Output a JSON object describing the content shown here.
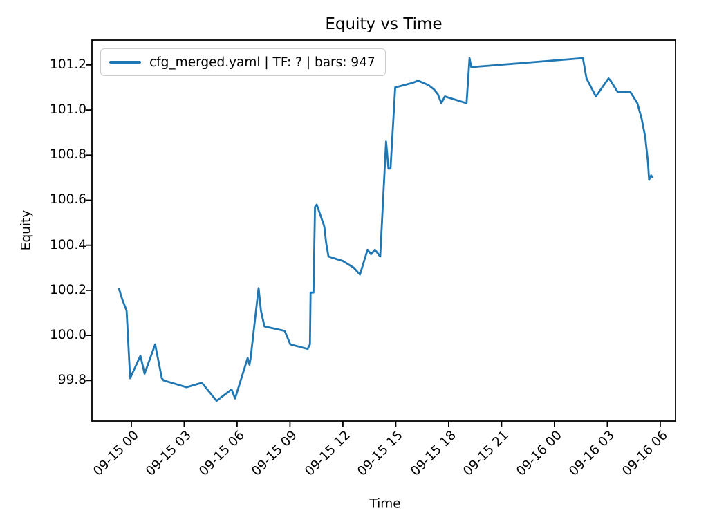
{
  "chart_data": {
    "type": "line",
    "title": "Equity vs Time",
    "xlabel": "Time",
    "ylabel": "Equity",
    "grid": false,
    "legend_position": "upper left",
    "line_color": "#1f77b4",
    "axis_color": "#000000",
    "x_ticks": [
      "09-15 00",
      "09-15 03",
      "09-15 06",
      "09-15 09",
      "09-15 12",
      "09-15 15",
      "09-15 18",
      "09-15 21",
      "09-16 00",
      "09-16 03",
      "09-16 06"
    ],
    "y_ticks": [
      99.8,
      100.0,
      100.2,
      100.4,
      100.6,
      100.8,
      101.0,
      101.2
    ],
    "xlim": [
      "09-14 21:46",
      "09-16 06:52"
    ],
    "ylim": [
      99.62,
      101.31
    ],
    "series": [
      {
        "name": "cfg_merged.yaml | TF: ? | bars: 947",
        "x": [
          "09-14 23:17",
          "09-14 23:29",
          "09-14 23:44",
          "09-14 23:56",
          "09-15 00:31",
          "09-15 00:45",
          "09-15 01:21",
          "09-15 01:44",
          "09-15 01:50",
          "09-15 03:08",
          "09-15 04:00",
          "09-15 04:50",
          "09-15 05:41",
          "09-15 05:53",
          "09-15 06:36",
          "09-15 06:42",
          "09-15 06:46",
          "09-15 07:13",
          "09-15 07:21",
          "09-15 07:26",
          "09-15 07:33",
          "09-15 08:42",
          "09-15 09:01",
          "09-15 10:00",
          "09-15 10:08",
          "09-15 10:10",
          "09-15 10:20",
          "09-15 10:25",
          "09-15 10:31",
          "09-15 10:55",
          "09-15 10:57",
          "09-15 11:03",
          "09-15 11:11",
          "09-15 12:00",
          "09-15 12:37",
          "09-15 12:58",
          "09-15 13:24",
          "09-15 13:36",
          "09-15 13:49",
          "09-15 14:07",
          "09-15 14:27",
          "09-15 14:35",
          "09-15 14:42",
          "09-15 14:58",
          "09-15 15:57",
          "09-15 16:16",
          "09-15 16:52",
          "09-15 17:11",
          "09-15 17:23",
          "09-15 17:35",
          "09-15 17:47",
          "09-15 19:01",
          "09-15 19:11",
          "09-15 19:17",
          "09-16 01:37",
          "09-16 01:49",
          "09-16 02:21",
          "09-16 03:04",
          "09-16 03:11",
          "09-16 03:35",
          "09-16 04:18",
          "09-16 04:42",
          "09-16 04:57",
          "09-16 05:09",
          "09-16 05:18",
          "09-16 05:22",
          "09-16 05:29",
          "09-16 05:34"
        ],
        "y": [
          100.21,
          100.16,
          100.11,
          99.81,
          99.91,
          99.83,
          99.96,
          99.81,
          99.8,
          99.77,
          99.79,
          99.71,
          99.76,
          99.72,
          99.9,
          99.87,
          99.9,
          100.21,
          100.11,
          100.08,
          100.04,
          100.02,
          99.96,
          99.94,
          99.96,
          100.19,
          100.19,
          100.57,
          100.58,
          100.49,
          100.48,
          100.41,
          100.35,
          100.33,
          100.3,
          100.27,
          100.38,
          100.36,
          100.38,
          100.35,
          100.86,
          100.74,
          100.74,
          101.1,
          101.12,
          101.13,
          101.11,
          101.09,
          101.07,
          101.03,
          101.06,
          101.03,
          101.23,
          101.19,
          101.23,
          101.14,
          101.06,
          101.14,
          101.13,
          101.08,
          101.08,
          101.03,
          100.96,
          100.88,
          100.77,
          100.69,
          100.71,
          100.7
        ]
      }
    ]
  }
}
